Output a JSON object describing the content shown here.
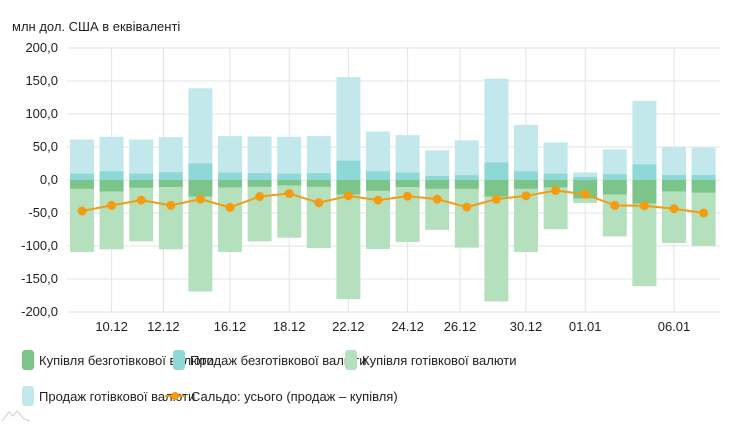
{
  "chart_data": {
    "type": "bar",
    "stacked": true,
    "unit_label": "млн дол. США в еквіваленті",
    "ylim": [
      -200,
      200
    ],
    "yticks": [
      200,
      150,
      100,
      50,
      0,
      -50,
      -100,
      -150,
      -200
    ],
    "ytick_labels": [
      "200,0",
      "150,0",
      "100,0",
      "50,0",
      "0,0",
      "-50,0",
      "-100,0",
      "-150,0",
      "-200,0"
    ],
    "category_count": 22,
    "xticks": [
      {
        "label": "10.12",
        "pos": 1
      },
      {
        "label": "12.12",
        "pos": 2.75
      },
      {
        "label": "16.12",
        "pos": 5
      },
      {
        "label": "18.12",
        "pos": 7
      },
      {
        "label": "22.12",
        "pos": 9
      },
      {
        "label": "24.12",
        "pos": 11
      },
      {
        "label": "26.12",
        "pos": 12.77
      },
      {
        "label": "30.12",
        "pos": 15
      },
      {
        "label": "01.01",
        "pos": 17
      },
      {
        "label": "06.01",
        "pos": 20
      }
    ],
    "grid": true,
    "legend_position": "bottom",
    "series": [
      {
        "name": "Купівля безготівкової валюти",
        "color": "#7cc58a",
        "values": [
          -13.5,
          -17.5,
          -12,
          -11,
          -25,
          -11.5,
          -10.5,
          -8.5,
          -10.5,
          -22,
          -16.5,
          -11,
          -13.5,
          -13.5,
          -25,
          -13.5,
          -11.5,
          -28,
          -22,
          -36,
          -17.5,
          -19.5
        ]
      },
      {
        "name": "Продаж безготівкової валюти",
        "color": "#8fd8d8",
        "values": [
          10,
          13.5,
          10,
          12,
          25.5,
          11.5,
          10.5,
          10,
          10.5,
          29.5,
          13.5,
          11.5,
          6.5,
          7.5,
          27,
          13.5,
          10,
          5,
          9,
          24,
          8,
          8
        ]
      },
      {
        "name": "Купівля готівкової валюти",
        "color": "#b5e0bd",
        "values": [
          -95.5,
          -87.5,
          -81,
          -94,
          -144,
          -97.5,
          -82.5,
          -79,
          -92.5,
          -158.5,
          -88,
          -83,
          -62,
          -89,
          -159,
          -95.5,
          -63,
          -7,
          -63.5,
          -125,
          -78,
          -80.5
        ]
      },
      {
        "name": "Продаж готівкової валюти",
        "color": "#c3e8ec",
        "values": [
          51.5,
          52,
          51.5,
          53,
          113.5,
          55,
          55.5,
          55.5,
          56,
          126.5,
          60,
          56.5,
          38.5,
          52.5,
          126.5,
          70,
          47,
          6.5,
          37.5,
          96,
          42,
          41
        ]
      }
    ],
    "line": {
      "name": "Сальдо: усього (продаж – купівля)",
      "color": "#f39c12",
      "values": [
        -47,
        -38.5,
        -30.5,
        -38.5,
        -29,
        -41.5,
        -25,
        -20.5,
        -34.5,
        -24,
        -30.5,
        -24.5,
        -29,
        -41,
        -29,
        -24,
        -16,
        -21.5,
        -38.5,
        -39,
        -43.5,
        -50
      ]
    }
  }
}
